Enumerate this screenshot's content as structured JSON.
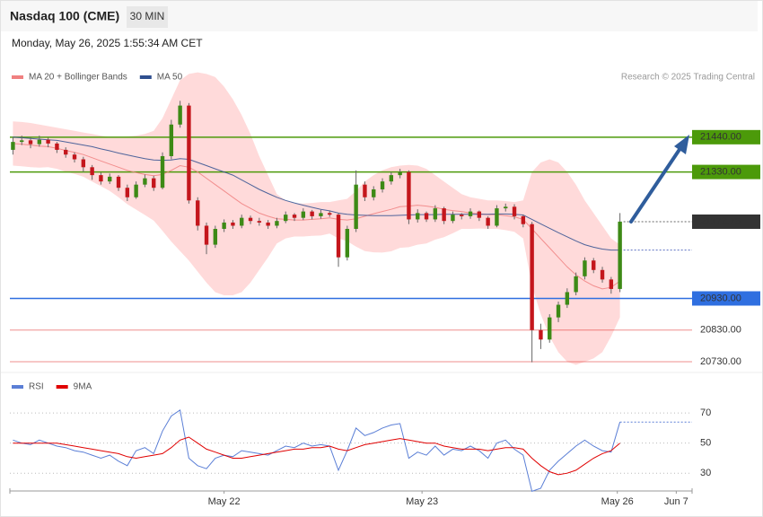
{
  "chart_data": [
    {
      "type": "candlestick",
      "title": "Nasdaq 100 (CME)",
      "interval": "30 MIN",
      "subtitle": "Monday, May 26, 2025 1:55:34 AM CET",
      "source": "Research © 2025 Trading Central",
      "ylim": [
        20710,
        21590
      ],
      "xlim": [
        -0.35,
        77.2
      ],
      "up_color": "#3d8a16",
      "down_color": "#c4161c",
      "open": [
        21400,
        21425,
        21430,
        21418,
        21432,
        21420,
        21400,
        21385,
        21370,
        21345,
        21320,
        21300,
        21315,
        21280,
        21250,
        21290,
        21310,
        21280,
        21380,
        21480,
        21540,
        21240,
        21160,
        21100,
        21150,
        21170,
        21160,
        21185,
        21175,
        21170,
        21160,
        21175,
        21195,
        21185,
        21205,
        21190,
        21200,
        21195,
        21060,
        21150,
        21290,
        21250,
        21275,
        21300,
        21320,
        21330,
        21180,
        21200,
        21180,
        21215,
        21175,
        21195,
        21190,
        21205,
        21185,
        21160,
        21215,
        21220,
        21190,
        21165,
        20830,
        20800,
        20870,
        20910,
        20950,
        21000,
        21050,
        21020,
        20990,
        20960
      ],
      "high": [
        21440,
        21445,
        21440,
        21445,
        21438,
        21425,
        21408,
        21392,
        21378,
        21352,
        21328,
        21325,
        21320,
        21290,
        21300,
        21322,
        21318,
        21392,
        21495,
        21555,
        21548,
        21250,
        21170,
        21160,
        21180,
        21178,
        21195,
        21192,
        21185,
        21178,
        21185,
        21205,
        21200,
        21215,
        21210,
        21210,
        21208,
        21200,
        21160,
        21335,
        21300,
        21285,
        21310,
        21330,
        21340,
        21335,
        21212,
        21205,
        21225,
        21220,
        21205,
        21200,
        21215,
        21208,
        21190,
        21225,
        21230,
        21228,
        21195,
        21172,
        20850,
        20880,
        20920,
        20962,
        21012,
        21060,
        21058,
        21030,
        20998,
        21200
      ],
      "low": [
        21385,
        21415,
        21405,
        21410,
        21408,
        21390,
        21375,
        21360,
        21330,
        21305,
        21290,
        21292,
        21270,
        21238,
        21245,
        21282,
        21270,
        21275,
        21370,
        21470,
        21230,
        21145,
        21070,
        21090,
        21140,
        21150,
        21152,
        21165,
        21160,
        21150,
        21152,
        21168,
        21175,
        21178,
        21180,
        21182,
        21188,
        21030,
        21050,
        21140,
        21238,
        21240,
        21265,
        21290,
        21310,
        21165,
        21170,
        21172,
        21172,
        21165,
        21168,
        21180,
        21182,
        21175,
        21150,
        21155,
        21205,
        21180,
        21155,
        20728,
        20770,
        20790,
        20855,
        20900,
        20940,
        20990,
        21010,
        20980,
        20945,
        20950
      ],
      "close": [
        21425,
        21430,
        21418,
        21432,
        21420,
        21400,
        21385,
        21370,
        21345,
        21320,
        21300,
        21315,
        21280,
        21250,
        21290,
        21310,
        21280,
        21380,
        21480,
        21540,
        21240,
        21160,
        21100,
        21150,
        21170,
        21160,
        21185,
        21175,
        21170,
        21160,
        21175,
        21195,
        21185,
        21205,
        21190,
        21200,
        21195,
        21060,
        21150,
        21290,
        21250,
        21275,
        21300,
        21320,
        21330,
        21180,
        21200,
        21180,
        21215,
        21175,
        21195,
        21190,
        21205,
        21185,
        21160,
        21215,
        21220,
        21190,
        21165,
        20830,
        20800,
        20870,
        20910,
        20950,
        21000,
        21050,
        21020,
        20990,
        20960,
        21173
      ],
      "series": [
        {
          "name": "MA 20 + Bollinger Bands",
          "color": "#f08080",
          "band_color": "#ffdada",
          "values": [
            21420,
            21418,
            21415,
            21412,
            21410,
            21405,
            21398,
            21392,
            21385,
            21375,
            21365,
            21355,
            21345,
            21335,
            21328,
            21322,
            21318,
            21322,
            21335,
            21350,
            21345,
            21330,
            21310,
            21290,
            21270,
            21250,
            21230,
            21215,
            21200,
            21190,
            21182,
            21180,
            21178,
            21178,
            21180,
            21182,
            21185,
            21180,
            21178,
            21182,
            21190,
            21198,
            21205,
            21212,
            21220,
            21222,
            21225,
            21222,
            21218,
            21212,
            21208,
            21205,
            21200,
            21198,
            21195,
            21195,
            21192,
            21188,
            21180,
            21150,
            21120,
            21090,
            21060,
            21030,
            21005,
            20985,
            20970,
            20960,
            20965,
            20985
          ],
          "upper": [
            21490,
            21488,
            21485,
            21480,
            21475,
            21470,
            21465,
            21460,
            21455,
            21450,
            21445,
            21440,
            21440,
            21442,
            21445,
            21450,
            21460,
            21500,
            21560,
            21620,
            21640,
            21645,
            21640,
            21630,
            21600,
            21560,
            21510,
            21450,
            21380,
            21320,
            21260,
            21240,
            21230,
            21230,
            21232,
            21235,
            21235,
            21240,
            21245,
            21270,
            21300,
            21320,
            21335,
            21345,
            21350,
            21352,
            21350,
            21340,
            21320,
            21300,
            21280,
            21260,
            21250,
            21245,
            21240,
            21240,
            21238,
            21235,
            21240,
            21330,
            21360,
            21370,
            21360,
            21330,
            21290,
            21240,
            21200,
            21160,
            21120,
            21100
          ],
          "lower": [
            21350,
            21348,
            21345,
            21344,
            21345,
            21340,
            21331,
            21324,
            21315,
            21300,
            21285,
            21270,
            21250,
            21228,
            21211,
            21194,
            21176,
            21144,
            21110,
            21080,
            21050,
            21015,
            20980,
            20950,
            20940,
            20940,
            20950,
            20980,
            21020,
            21060,
            21104,
            21120,
            21126,
            21126,
            21128,
            21129,
            21135,
            21120,
            21111,
            21094,
            21080,
            21076,
            21075,
            21079,
            21090,
            21092,
            21100,
            21104,
            21116,
            21124,
            21136,
            21150,
            21150,
            21151,
            21150,
            21150,
            21146,
            21141,
            21120,
            20970,
            20880,
            20810,
            20760,
            20730,
            20720,
            20730,
            20740,
            20760,
            20810,
            20870
          ]
        },
        {
          "name": "MA 50",
          "color": "#2f4f8f",
          "values": [
            21440,
            21438,
            21436,
            21434,
            21432,
            21430,
            21425,
            21420,
            21415,
            21410,
            21403,
            21397,
            21390,
            21384,
            21378,
            21372,
            21368,
            21367,
            21368,
            21372,
            21370,
            21360,
            21350,
            21340,
            21330,
            21320,
            21305,
            21290,
            21275,
            21262,
            21250,
            21240,
            21232,
            21225,
            21218,
            21212,
            21207,
            21200,
            21196,
            21194,
            21193,
            21192,
            21192,
            21192,
            21193,
            21194,
            21195,
            21195,
            21195,
            21196,
            21196,
            21196,
            21196,
            21196,
            21196,
            21197,
            21197,
            21196,
            21194,
            21180,
            21166,
            21152,
            21138,
            21125,
            21112,
            21100,
            21092,
            21086,
            21083,
            21083
          ]
        }
      ],
      "levels": [
        {
          "value": 21440,
          "label": "21440.00",
          "color": "#4c9a0a",
          "style": "box"
        },
        {
          "value": 21330,
          "label": "21330.00",
          "color": "#4c9a0a",
          "style": "box"
        },
        {
          "value": 20930,
          "label": "20930.00",
          "color": "#2f6fe0",
          "style": "box"
        },
        {
          "value": 20830,
          "label": "20830.00",
          "color": "#e0201c",
          "style": "text"
        },
        {
          "value": 20730,
          "label": "20730.00",
          "color": "#e0201c",
          "style": "text"
        }
      ],
      "last_price": {
        "value": 21172.75,
        "color": "#333333"
      },
      "reference": {
        "value": 21083,
        "color": "#5a6fc0"
      }
    },
    {
      "type": "line",
      "ylim": [
        20,
        82
      ],
      "xlim": [
        -0.35,
        77.2
      ],
      "yticks": [
        30,
        50,
        70
      ],
      "xticks": [
        {
          "value": 24,
          "label": "May 22"
        },
        {
          "value": 46.5,
          "label": "May 23"
        },
        {
          "value": 68.7,
          "label": "May 26"
        },
        {
          "value": 75.4,
          "label": "Jun 7"
        }
      ],
      "series": [
        {
          "name": "RSI",
          "color": "#5b7fd6",
          "values": [
            52,
            50,
            49,
            52,
            50,
            48,
            47,
            45,
            44,
            42,
            40,
            42,
            38,
            35,
            45,
            47,
            43,
            58,
            68,
            72,
            40,
            35,
            33,
            40,
            42,
            41,
            45,
            44,
            43,
            42,
            45,
            48,
            47,
            50,
            48,
            49,
            48,
            32,
            45,
            60,
            55,
            57,
            60,
            62,
            63,
            40,
            44,
            42,
            48,
            42,
            46,
            45,
            48,
            45,
            40,
            50,
            52,
            46,
            42,
            18,
            20,
            32,
            38,
            43,
            48,
            52,
            48,
            45,
            44,
            64
          ]
        },
        {
          "name": "9MA",
          "color": "#e00000",
          "values": [
            50,
            50,
            50,
            50,
            50,
            50,
            49,
            48,
            47,
            46,
            45,
            44,
            43,
            41,
            40,
            41,
            42,
            43,
            47,
            52,
            54,
            50,
            46,
            44,
            42,
            40,
            40,
            41,
            42,
            43,
            44,
            45,
            46,
            46,
            47,
            47,
            48,
            46,
            45,
            47,
            49,
            50,
            51,
            52,
            53,
            52,
            51,
            50,
            50,
            48,
            47,
            46,
            46,
            46,
            45,
            46,
            47,
            47,
            46,
            40,
            35,
            31,
            29,
            30,
            32,
            36,
            40,
            43,
            45,
            50
          ]
        }
      ]
    }
  ]
}
